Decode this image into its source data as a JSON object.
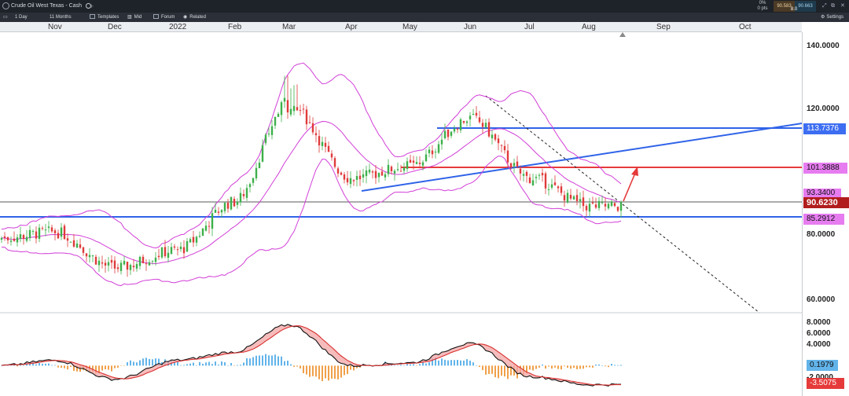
{
  "topbar": {
    "instrument": "Crude Oil West Texas - Cash",
    "search_icon": "search-icon",
    "add_tab": "+",
    "pnl_pct": "0%",
    "pnl_pts": "0 pts",
    "bid": "90.583",
    "ask": "90.663",
    "spread": "8.0"
  },
  "toolbar": {
    "interval": "1 Day",
    "range": "11 Months",
    "templates": "Templates",
    "mid": "Mid",
    "forum": "Forum",
    "related": "Related",
    "settings": "Settings"
  },
  "months": [
    "Nov",
    "Dec",
    "2022",
    "Feb",
    "Mar",
    "Apr",
    "May",
    "Jun",
    "Jul",
    "Aug",
    "Sep",
    "Oct"
  ],
  "price_axis": {
    "ticks": [
      "140.0000",
      "120.0000",
      "100.0000",
      "80.0000",
      "60.0000"
    ],
    "labels": {
      "resistance_high": "113.7376",
      "resistance": "101.3888",
      "upper_band": "93.3400",
      "last_price": "90.6230",
      "support": "85.2912"
    }
  },
  "macd_axis": {
    "ticks": [
      "8.0000",
      "6.0000",
      "4.0000",
      "2.0000",
      "-2.0000"
    ],
    "labels": {
      "histogram": "0.1979",
      "macd": "-3.5075"
    }
  },
  "colors": {
    "bull_candle": "#3db04a",
    "bear_candle": "#e03a3a",
    "bollinger": "#d23fd8",
    "support_line": "#2f63e8",
    "resistance_line": "#e63a3a",
    "last_price_line": "#222222",
    "macd_hist_pos": "#62b4ea",
    "macd_hist_neg": "#f0a04a"
  },
  "chart_data": {
    "type": "candlestick",
    "instrument": "Crude Oil West Texas - Cash",
    "interval": "1 Day",
    "range": "11 Months",
    "ylim": [
      55,
      147
    ],
    "price_close_approx": [
      {
        "x": "Nov",
        "y": 82
      },
      {
        "x": "Dec",
        "y": 70
      },
      {
        "x": "2022",
        "y": 76
      },
      {
        "x": "Feb",
        "y": 92
      },
      {
        "x": "Mar",
        "y": 125
      },
      {
        "x": "Apr",
        "y": 100
      },
      {
        "x": "May",
        "y": 104
      },
      {
        "x": "Jun",
        "y": 120
      },
      {
        "x": "Jul",
        "y": 100
      },
      {
        "x": "Aug",
        "y": 90.62
      }
    ],
    "horizontal_levels": [
      113.7376,
      101.3888,
      85.2912,
      90.623
    ],
    "macd_ylim": [
      -5,
      9
    ],
    "macd_approx": [
      {
        "x": "Nov",
        "y": 1
      },
      {
        "x": "Dec",
        "y": -2.5
      },
      {
        "x": "2022",
        "y": 1
      },
      {
        "x": "Feb",
        "y": 2.5
      },
      {
        "x": "Mar",
        "y": 7.5
      },
      {
        "x": "Apr",
        "y": 0
      },
      {
        "x": "May",
        "y": 0.5
      },
      {
        "x": "Jun",
        "y": 4
      },
      {
        "x": "Jul",
        "y": -2
      },
      {
        "x": "Aug",
        "y": -3.5075
      }
    ]
  }
}
